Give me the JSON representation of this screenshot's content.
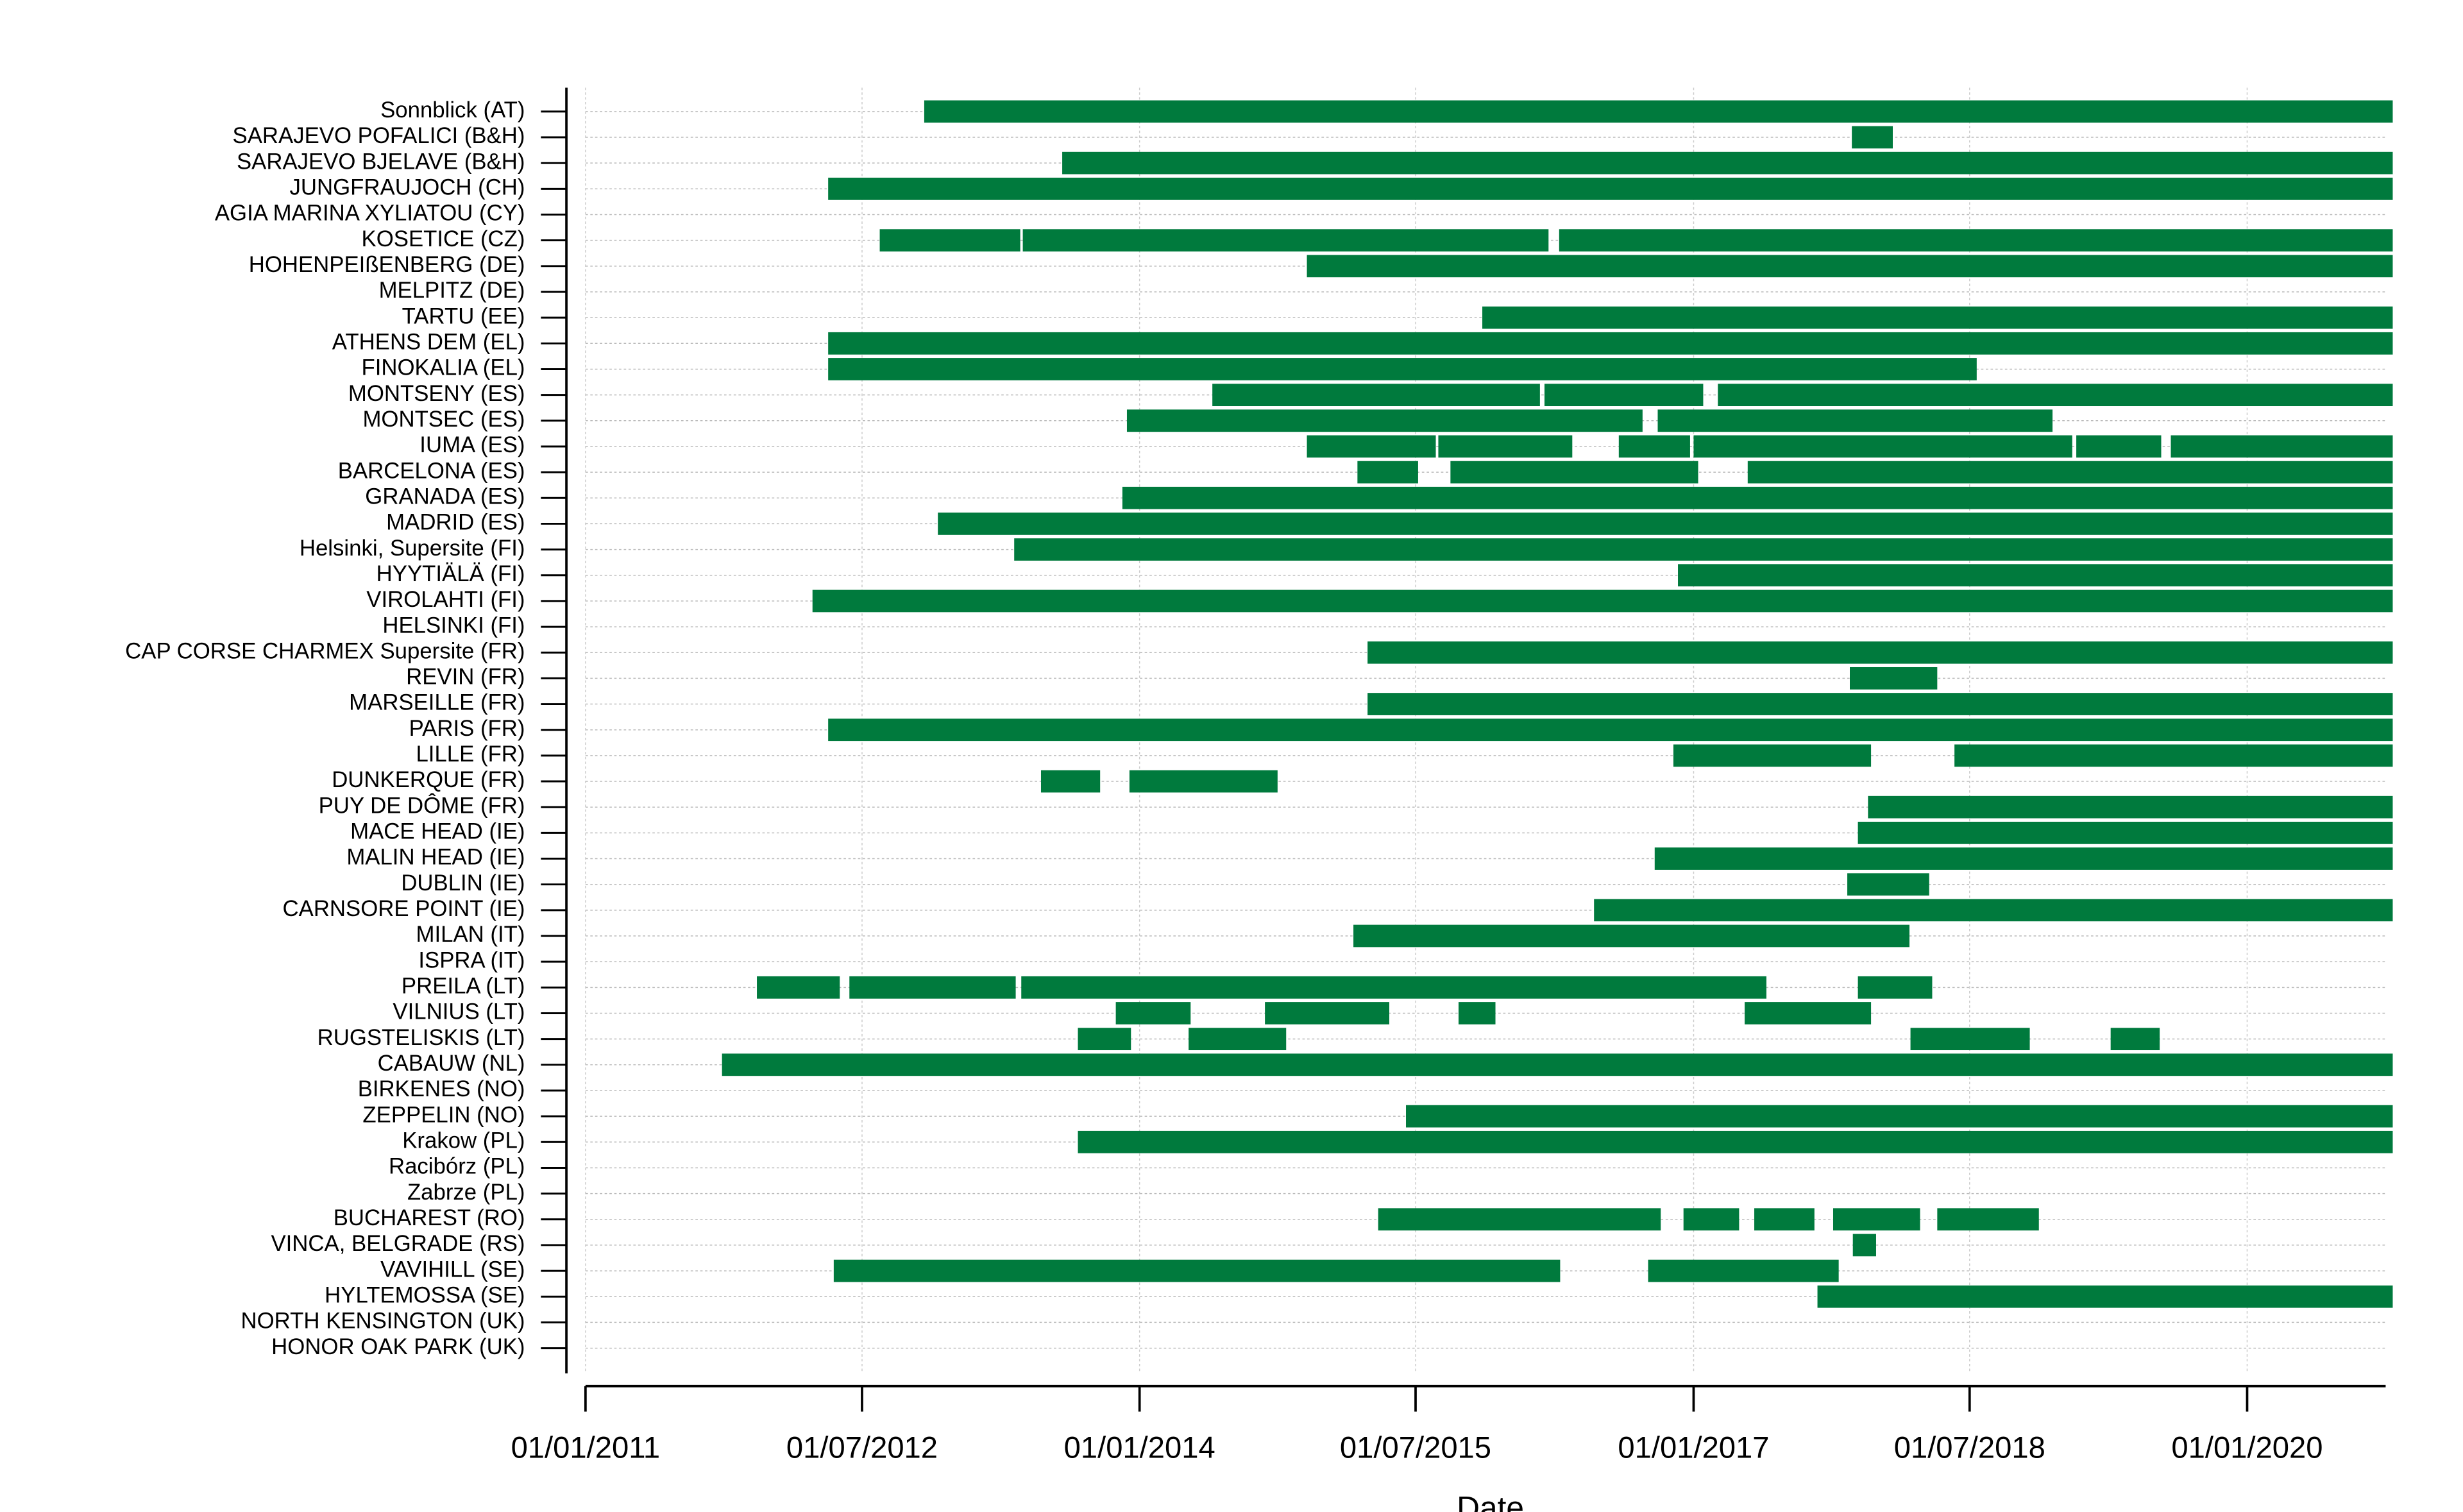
{
  "chart_data": {
    "type": "gantt",
    "x_label": "Date",
    "color": "#007a3d",
    "grid": true,
    "xlim": [
      "01/01/2011",
      "01/10/2020"
    ],
    "xticks": [
      "01/01/2011",
      "01/07/2012",
      "01/01/2014",
      "01/07/2015",
      "01/01/2017",
      "01/07/2018",
      "01/01/2020"
    ],
    "categories": [
      "Sonnblick (AT)",
      "SARAJEVO POFALICI (B&H)",
      "SARAJEVO BJELAVE (B&H)",
      "JUNGFRAUJOCH (CH)",
      "AGIA MARINA XYLIATOU (CY)",
      "KOSETICE (CZ)",
      "HOHENPEIßENBERG (DE)",
      "MELPITZ (DE)",
      "TARTU (EE)",
      "ATHENS DEM (EL)",
      "FINOKALIA (EL)",
      "MONTSENY (ES)",
      "MONTSEC (ES)",
      "IUMA (ES)",
      "BARCELONA (ES)",
      "GRANADA (ES)",
      "MADRID (ES)",
      "Helsinki, Supersite (FI)",
      "HYYTIÄLÄ (FI)",
      "VIROLAHTI (FI)",
      "HELSINKI (FI)",
      "CAP CORSE CHARMEX Supersite (FR)",
      "REVIN (FR)",
      "MARSEILLE (FR)",
      "PARIS (FR)",
      "LILLE (FR)",
      "DUNKERQUE (FR)",
      "PUY DE DÔME (FR)",
      "MACE HEAD (IE)",
      "MALIN HEAD (IE)",
      "DUBLIN (IE)",
      "CARNSORE POINT (IE)",
      "MILAN (IT)",
      "ISPRA (IT)",
      "PREILA (LT)",
      "VILNIUS (LT)",
      "RUGSTELISKIS (LT)",
      "CABAUW (NL)",
      "BIRKENES (NO)",
      "ZEPPELIN (NO)",
      "Krakow (PL)",
      "Racibórz (PL)",
      "Zabrze (PL)",
      "BUCHAREST (RO)",
      "VINCA, BELGRADE  (RS)",
      "VAVIHILL (SE)",
      "HYLTEMOSSA (SE)",
      "NORTH KENSINGTON (UK)",
      "HONOR OAK PARK (UK)"
    ],
    "intervals": [
      [
        [
          "01/11/2012",
          "15/10/2020"
        ]
      ],
      [
        [
          "10/11/2017",
          "30/01/2018"
        ]
      ],
      [
        [
          "01/08/2013",
          "15/10/2020"
        ]
      ],
      [
        [
          "25/04/2012",
          "15/10/2020"
        ]
      ],
      [],
      [
        [
          "05/08/2012",
          "10/05/2013"
        ],
        [
          "15/05/2013",
          "20/03/2016"
        ],
        [
          "10/04/2016",
          "15/10/2020"
        ]
      ],
      [
        [
          "28/11/2014",
          "15/10/2020"
        ]
      ],
      [],
      [
        [
          "10/11/2015",
          "15/10/2020"
        ]
      ],
      [
        [
          "25/04/2012",
          "15/10/2020"
        ]
      ],
      [
        [
          "25/04/2012",
          "15/07/2018"
        ]
      ],
      [
        [
          "25/05/2014",
          "03/03/2016"
        ],
        [
          "12/03/2016",
          "20/01/2017"
        ],
        [
          "18/02/2017",
          "15/10/2020"
        ]
      ],
      [
        [
          "07/12/2013",
          "22/09/2016"
        ],
        [
          "22/10/2016",
          "12/12/2018"
        ]
      ],
      [
        [
          "28/11/2014",
          "10/08/2015"
        ],
        [
          "15/08/2015",
          "06/05/2016"
        ],
        [
          "06/08/2016",
          "25/12/2016"
        ],
        [
          "01/01/2017",
          "20/01/2019"
        ],
        [
          "28/01/2019",
          "15/07/2019"
        ],
        [
          "03/08/2019",
          "15/10/2020"
        ]
      ],
      [
        [
          "08/03/2015",
          "06/07/2015"
        ],
        [
          "08/09/2015",
          "10/01/2017"
        ],
        [
          "18/04/2017",
          "15/10/2020"
        ]
      ],
      [
        [
          "28/11/2013",
          "15/10/2020"
        ]
      ],
      [
        [
          "28/11/2012",
          "15/10/2020"
        ]
      ],
      [
        [
          "28/04/2013",
          "15/10/2020"
        ]
      ],
      [
        [
          "01/12/2016",
          "15/10/2020"
        ]
      ],
      [
        [
          "25/03/2012",
          "15/10/2020"
        ]
      ],
      [],
      [
        [
          "28/03/2015",
          "15/10/2020"
        ]
      ],
      [
        [
          "06/11/2017",
          "28/04/2018"
        ]
      ],
      [
        [
          "28/03/2015",
          "15/10/2020"
        ]
      ],
      [
        [
          "25/04/2012",
          "15/10/2020"
        ]
      ],
      [
        [
          "22/11/2016",
          "18/12/2017"
        ],
        [
          "01/06/2018",
          "15/10/2020"
        ]
      ],
      [
        [
          "20/06/2013",
          "15/10/2013"
        ],
        [
          "12/12/2013",
          "01/10/2014"
        ]
      ],
      [
        [
          "12/12/2017",
          "15/10/2020"
        ]
      ],
      [
        [
          "22/11/2017",
          "15/10/2020"
        ]
      ],
      [
        [
          "16/10/2016",
          "15/10/2020"
        ]
      ],
      [
        [
          "01/11/2017",
          "12/04/2018"
        ]
      ],
      [
        [
          "18/06/2016",
          "15/10/2020"
        ]
      ],
      [
        [
          "28/02/2015",
          "04/03/2018"
        ]
      ],
      [],
      [
        [
          "06/12/2011",
          "18/05/2012"
        ],
        [
          "06/06/2012",
          "01/05/2013"
        ],
        [
          "12/05/2013",
          "25/05/2017"
        ],
        [
          "22/11/2017",
          "18/04/2018"
        ]
      ],
      [
        [
          "15/11/2013",
          "12/04/2014"
        ],
        [
          "06/09/2014",
          "10/05/2015"
        ],
        [
          "24/09/2015",
          "06/12/2015"
        ],
        [
          "12/04/2017",
          "18/12/2017"
        ]
      ],
      [
        [
          "01/09/2013",
          "15/12/2013"
        ],
        [
          "08/04/2014",
          "18/10/2014"
        ],
        [
          "06/03/2018",
          "28/10/2018"
        ],
        [
          "06/04/2019",
          "12/07/2019"
        ]
      ],
      [
        [
          "28/09/2011",
          "15/10/2020"
        ]
      ],
      [],
      [
        [
          "12/06/2015",
          "15/10/2020"
        ]
      ],
      [
        [
          "01/09/2013",
          "15/10/2020"
        ]
      ],
      [],
      [],
      [
        [
          "18/04/2015",
          "28/10/2016"
        ],
        [
          "12/12/2016",
          "01/04/2017"
        ],
        [
          "01/05/2017",
          "28/08/2017"
        ],
        [
          "04/10/2017",
          "25/03/2018"
        ],
        [
          "28/04/2018",
          "15/11/2018"
        ]
      ],
      [
        [
          "12/11/2017",
          "28/12/2017"
        ]
      ],
      [
        [
          "06/05/2012",
          "12/04/2016"
        ],
        [
          "03/10/2016",
          "15/10/2017"
        ]
      ],
      [
        [
          "03/09/2017",
          "15/10/2020"
        ]
      ],
      [],
      []
    ]
  }
}
